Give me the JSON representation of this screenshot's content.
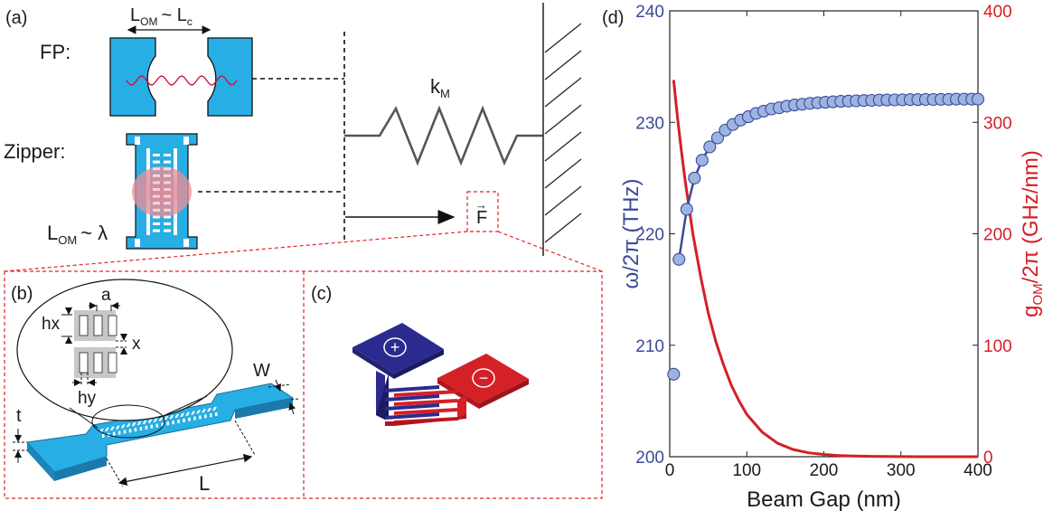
{
  "panels": {
    "a": "(a)",
    "b": "(b)",
    "c": "(c)",
    "d": "(d)"
  },
  "panel_a": {
    "fp_label": "FP:",
    "zipper_label": "Zipper:",
    "lom_main": "L",
    "lom_sub": "OM",
    "lom_fp_rel": "~ L",
    "lom_fp_sub": "c",
    "lom_zip_rel": "~ λ",
    "spring_main": "k",
    "spring_sub": "M",
    "force": "F",
    "force_arrow": "→"
  },
  "panel_b": {
    "a": "a",
    "hx": "hx",
    "x": "x",
    "hy": "hy",
    "w": "W",
    "t": "t",
    "l": "L"
  },
  "panel_c": {
    "plus": "+",
    "minus": "−",
    "plus_color": "#2b2b8f",
    "minus_color": "#d42027"
  },
  "colors": {
    "device_blue": "#27aee5",
    "dashed_red": "#e0242b",
    "omega_series": "#3a4a9a",
    "omega_marker": "#9db4e2",
    "g_series": "#d42027"
  },
  "chart_data": {
    "type": "line",
    "xlabel": "Beam Gap (nm)",
    "xlim": [
      0,
      400
    ],
    "xticks": [
      0,
      100,
      200,
      300,
      400
    ],
    "left_axis": {
      "label_main": "ω/2π (THz)",
      "ylim": [
        200,
        240
      ],
      "yticks": [
        200,
        210,
        220,
        230,
        240
      ]
    },
    "right_axis": {
      "label_main": "g",
      "label_sub": "OM",
      "label_rest": "/2π (GHz/nm)",
      "ylim": [
        0,
        400
      ],
      "yticks": [
        0,
        100,
        200,
        300,
        400
      ]
    },
    "series": [
      {
        "axis": "left",
        "style": "markers+line",
        "x": [
          5,
          12,
          22,
          32,
          42,
          52,
          62,
          72,
          82,
          92,
          102,
          112,
          122,
          132,
          142,
          152,
          162,
          172,
          182,
          192,
          202,
          212,
          222,
          232,
          242,
          252,
          262,
          272,
          282,
          292,
          302,
          312,
          322,
          332,
          342,
          352,
          362,
          372,
          382,
          392,
          400
        ],
        "y": [
          207.4,
          217.7,
          222.2,
          225,
          226.6,
          227.8,
          228.6,
          229.3,
          229.8,
          230.2,
          230.5,
          230.8,
          231.0,
          231.2,
          231.3,
          231.45,
          231.55,
          231.62,
          231.7,
          231.75,
          231.8,
          231.84,
          231.88,
          231.9,
          231.93,
          231.95,
          231.97,
          231.99,
          232.0,
          232.01,
          232.02,
          232.03,
          232.04,
          232.05,
          232.05,
          232.06,
          232.06,
          232.07,
          232.07,
          232.07,
          232.07
        ]
      },
      {
        "axis": "right",
        "style": "line",
        "x": [
          5,
          10,
          15,
          20,
          30,
          40,
          50,
          60,
          70,
          80,
          90,
          100,
          120,
          140,
          160,
          180,
          200,
          220,
          240,
          260,
          300,
          350,
          400
        ],
        "y": [
          338,
          305,
          275,
          248,
          200,
          162,
          129,
          103,
          82,
          64,
          50,
          38,
          22,
          12,
          6.5,
          3.5,
          2,
          1,
          0.6,
          0.3,
          0.1,
          0.02,
          0
        ]
      }
    ]
  }
}
